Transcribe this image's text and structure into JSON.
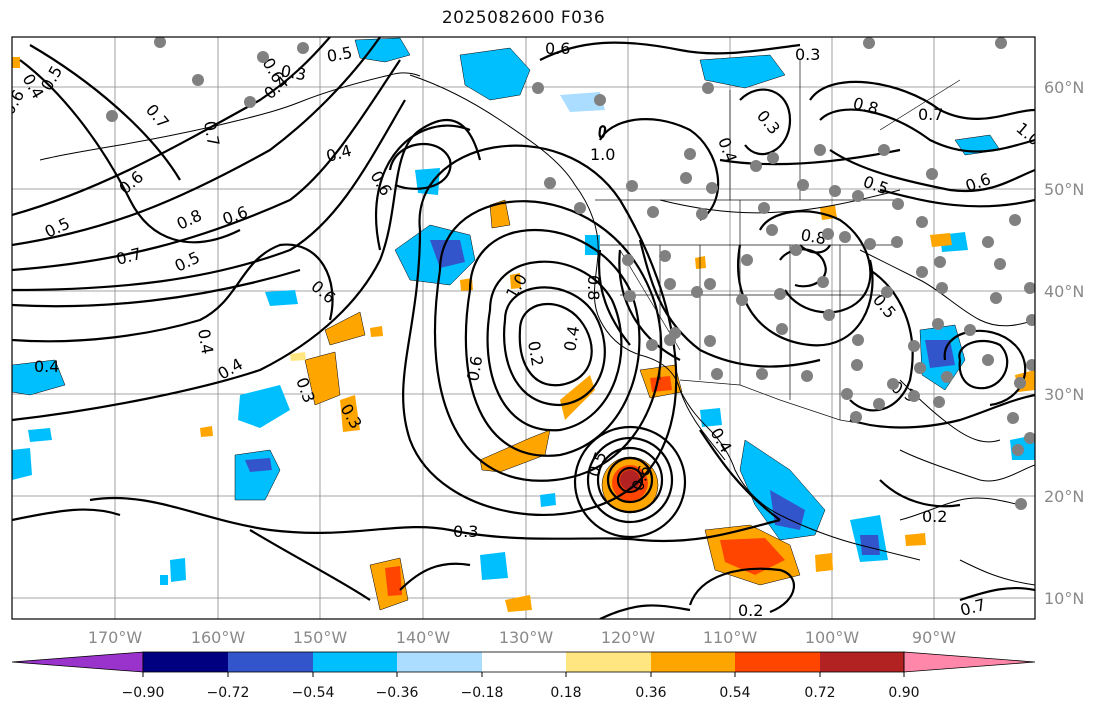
{
  "title": "2025082600 F036",
  "lat_labels": [
    "60°N",
    "50°N",
    "40°N",
    "30°N",
    "20°N",
    "10°N"
  ],
  "lon_labels": [
    "170°W",
    "160°W",
    "150°W",
    "140°W",
    "130°W",
    "120°W",
    "110°W",
    "100°W",
    "90°W"
  ],
  "colorbar": {
    "tick_labels": [
      "−0.90",
      "−0.72",
      "−0.54",
      "−0.36",
      "−0.18",
      "0.18",
      "0.36",
      "0.54",
      "0.72",
      "0.90"
    ],
    "colors": [
      "#9933cc",
      "#000080",
      "#3355cc",
      "#00bfff",
      "#aaddff",
      "#ffffff",
      "#ffe680",
      "#ffa500",
      "#ff4500",
      "#b22222",
      "#ff88aa"
    ]
  },
  "contour_labels": [
    "0.4",
    "0.5",
    "0.6",
    "0.3",
    "0.5",
    "0.6",
    "0.3",
    "0.8",
    "0.7",
    "1.0",
    "0.7",
    "0.6",
    "0.4",
    "0.3",
    "0.4",
    "0.7",
    "0.6",
    "0.5",
    "0.6",
    "0.8",
    "0.7",
    "0.5",
    "0.6",
    "0.6",
    "0.5",
    "0.4",
    "0.4",
    "0.4",
    "0.3",
    "0.3",
    "0.6",
    "0.2",
    "0.4",
    "0.5",
    "0.3",
    "0.6",
    "0.5",
    "0.2",
    "0.7",
    "0.8",
    "0.8",
    "0.4",
    "1.0",
    "1.0",
    "0.6",
    "0.2",
    "0.4",
    "0.3"
  ]
}
